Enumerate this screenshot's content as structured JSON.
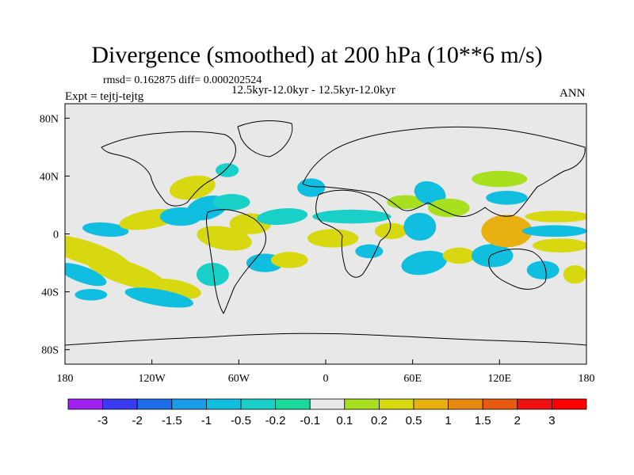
{
  "title": "Divergence (smoothed) at 200 hPa (10**6 m/s)",
  "stats_line": "rmsd= 0.162875 diff= 0.000202524",
  "experiment_line": "Expt = tejtj-tejtg",
  "period_line": "12.5kyr-12.0kyr - 12.5kyr-12.0kyr",
  "season": "ANN",
  "chart_data": {
    "type": "heatmap",
    "title": "Divergence (smoothed) at 200 hPa (10**6 m/s)",
    "projection": "cylindrical equidistant",
    "xlim": [
      -180,
      180
    ],
    "ylim": [
      -90,
      90
    ],
    "x_ticks": [
      {
        "value": -180,
        "label": "180"
      },
      {
        "value": -120,
        "label": "120W"
      },
      {
        "value": -60,
        "label": "60W"
      },
      {
        "value": 0,
        "label": "0"
      },
      {
        "value": 60,
        "label": "60E"
      },
      {
        "value": 120,
        "label": "120E"
      },
      {
        "value": 180,
        "label": "180"
      }
    ],
    "y_ticks": [
      {
        "value": 80,
        "label": "80N"
      },
      {
        "value": 40,
        "label": "40N"
      },
      {
        "value": 0,
        "label": "0"
      },
      {
        "value": -40,
        "label": "40S"
      },
      {
        "value": -80,
        "label": "80S"
      }
    ],
    "colorbar": {
      "labels": [
        "-3",
        "-2",
        "-1.5",
        "-1",
        "-0.5",
        "-0.2",
        "-0.1",
        "0.1",
        "0.2",
        "0.5",
        "1",
        "1.5",
        "2",
        "3"
      ],
      "colors": [
        "#a020f0",
        "#3a3af0",
        "#1c6ee8",
        "#1a9de8",
        "#10bfe0",
        "#18d0c8",
        "#1cd89a",
        "#e8e8e8",
        "#a8e020",
        "#d8d810",
        "#e8b010",
        "#e88810",
        "#e85a10",
        "#f01010",
        "#ff0000"
      ]
    },
    "features": [
      {
        "lon": -165,
        "lat": -13,
        "w": 40,
        "h": 10,
        "rot": 18,
        "level": 9
      },
      {
        "lon": -138,
        "lat": -27,
        "w": 36,
        "h": 10,
        "rot": 18,
        "level": 9
      },
      {
        "lon": -105,
        "lat": -38,
        "w": 24,
        "h": 8,
        "rot": 10,
        "level": 9
      },
      {
        "lon": -168,
        "lat": -28,
        "w": 22,
        "h": 7,
        "rot": 20,
        "level": 4
      },
      {
        "lon": -115,
        "lat": -44,
        "w": 30,
        "h": 7,
        "rot": 10,
        "level": 4
      },
      {
        "lon": -162,
        "lat": -42,
        "w": 14,
        "h": 5,
        "rot": 0,
        "level": 4
      },
      {
        "lon": -152,
        "lat": 3,
        "w": 20,
        "h": 6,
        "rot": 5,
        "level": 4
      },
      {
        "lon": -122,
        "lat": 10,
        "w": 26,
        "h": 8,
        "rot": -10,
        "level": 9
      },
      {
        "lon": -100,
        "lat": 12,
        "w": 18,
        "h": 8,
        "rot": 0,
        "level": 4
      },
      {
        "lon": -82,
        "lat": 18,
        "w": 18,
        "h": 10,
        "rot": -15,
        "level": 4
      },
      {
        "lon": -92,
        "lat": 32,
        "w": 20,
        "h": 10,
        "rot": -10,
        "level": 9
      },
      {
        "lon": -65,
        "lat": 22,
        "w": 16,
        "h": 7,
        "rot": 0,
        "level": 5
      },
      {
        "lon": -68,
        "lat": 44,
        "w": 10,
        "h": 6,
        "rot": 0,
        "level": 5
      },
      {
        "lon": -70,
        "lat": -3,
        "w": 24,
        "h": 10,
        "rot": 10,
        "level": 9
      },
      {
        "lon": -78,
        "lat": -28,
        "w": 14,
        "h": 10,
        "rot": 0,
        "level": 5
      },
      {
        "lon": -52,
        "lat": 7,
        "w": 18,
        "h": 9,
        "rot": 0,
        "level": 9
      },
      {
        "lon": -30,
        "lat": 12,
        "w": 22,
        "h": 7,
        "rot": -5,
        "level": 5
      },
      {
        "lon": -42,
        "lat": -20,
        "w": 16,
        "h": 8,
        "rot": 0,
        "level": 4
      },
      {
        "lon": -25,
        "lat": -18,
        "w": 16,
        "h": 7,
        "rot": 0,
        "level": 9
      },
      {
        "lon": -10,
        "lat": 32,
        "w": 12,
        "h": 8,
        "rot": 0,
        "level": 4
      },
      {
        "lon": 5,
        "lat": -3,
        "w": 22,
        "h": 8,
        "rot": 0,
        "level": 9
      },
      {
        "lon": 18,
        "lat": 12,
        "w": 34,
        "h": 6,
        "rot": 0,
        "level": 5
      },
      {
        "lon": 30,
        "lat": -12,
        "w": 12,
        "h": 6,
        "rot": 0,
        "level": 4
      },
      {
        "lon": 45,
        "lat": 2,
        "w": 14,
        "h": 7,
        "rot": 0,
        "level": 9
      },
      {
        "lon": 55,
        "lat": 22,
        "w": 16,
        "h": 6,
        "rot": 0,
        "level": 8
      },
      {
        "lon": 65,
        "lat": 5,
        "w": 14,
        "h": 12,
        "rot": 0,
        "level": 4
      },
      {
        "lon": 68,
        "lat": -20,
        "w": 20,
        "h": 10,
        "rot": -10,
        "level": 4
      },
      {
        "lon": 72,
        "lat": 28,
        "w": 14,
        "h": 10,
        "rot": 20,
        "level": 4
      },
      {
        "lon": 85,
        "lat": 18,
        "w": 18,
        "h": 8,
        "rot": 0,
        "level": 8
      },
      {
        "lon": 92,
        "lat": -15,
        "w": 14,
        "h": 7,
        "rot": 0,
        "level": 9
      },
      {
        "lon": 115,
        "lat": -15,
        "w": 18,
        "h": 10,
        "rot": 0,
        "level": 4
      },
      {
        "lon": 125,
        "lat": 2,
        "w": 22,
        "h": 14,
        "rot": 0,
        "level": 10
      },
      {
        "lon": 120,
        "lat": 38,
        "w": 24,
        "h": 7,
        "rot": 0,
        "level": 8
      },
      {
        "lon": 125,
        "lat": 25,
        "w": 18,
        "h": 6,
        "rot": 0,
        "level": 4
      },
      {
        "lon": 160,
        "lat": 12,
        "w": 28,
        "h": 5,
        "rot": 0,
        "level": 9
      },
      {
        "lon": 158,
        "lat": 2,
        "w": 28,
        "h": 5,
        "rot": 0,
        "level": 4
      },
      {
        "lon": 162,
        "lat": -8,
        "w": 24,
        "h": 6,
        "rot": 0,
        "level": 9
      },
      {
        "lon": 150,
        "lat": -25,
        "w": 14,
        "h": 8,
        "rot": 0,
        "level": 4
      },
      {
        "lon": 172,
        "lat": -28,
        "w": 10,
        "h": 8,
        "rot": 0,
        "level": 9
      }
    ]
  }
}
